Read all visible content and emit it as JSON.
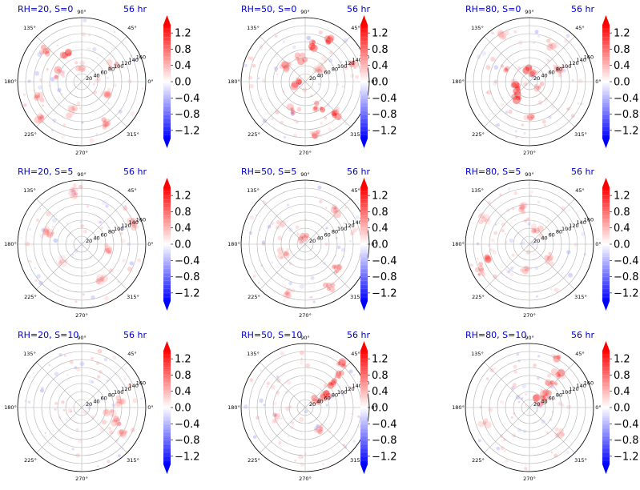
{
  "chart_data": [
    {
      "type": "heatmap",
      "projection": "polar",
      "title": "RH=20, S=0",
      "time_label": "56 hr",
      "radial_ticks": [
        20,
        40,
        60,
        80,
        100,
        120,
        140,
        160
      ],
      "rlim": [
        0,
        160
      ],
      "angular_ticks": [
        "0°",
        "45°",
        "90°",
        "135°",
        "180°",
        "225°",
        "270°",
        "315°"
      ],
      "colorbar": {
        "ticks": [
          "1.2",
          "0.8",
          "0.4",
          "0.0",
          "−0.4",
          "−0.8",
          "−1.2"
        ],
        "range": [
          -1.4,
          1.4
        ],
        "colormap": "bwr",
        "extend": "both"
      },
      "hotspots": [
        [
          120,
          75,
          0.7
        ],
        [
          140,
          120,
          0.6
        ],
        [
          160,
          60,
          0.5
        ],
        [
          200,
          110,
          0.5
        ],
        [
          250,
          80,
          0.4
        ],
        [
          300,
          120,
          0.5
        ],
        [
          30,
          90,
          0.4
        ],
        [
          330,
          70,
          0.3
        ],
        [
          100,
          40,
          0.4
        ],
        [
          220,
          140,
          0.4
        ]
      ]
    },
    {
      "type": "heatmap",
      "projection": "polar",
      "title": "RH=50, S=0",
      "time_label": "56 hr",
      "radial_ticks": [
        20,
        40,
        60,
        80,
        100,
        120,
        140,
        160
      ],
      "rlim": [
        0,
        160
      ],
      "angular_ticks": [
        "0°",
        "45°",
        "90°",
        "135°",
        "180°",
        "225°",
        "270°",
        "315°"
      ],
      "colorbar": {
        "ticks": [
          "1.2",
          "0.8",
          "0.4",
          "0.0",
          "−0.4",
          "−0.8",
          "−1.2"
        ],
        "range": [
          -1.4,
          1.4
        ],
        "colormap": "bwr",
        "extend": "both"
      },
      "hotspots": [
        [
          80,
          90,
          0.8
        ],
        [
          60,
          120,
          0.7
        ],
        [
          300,
          70,
          0.8
        ],
        [
          315,
          110,
          0.9
        ],
        [
          190,
          20,
          0.8
        ],
        [
          140,
          60,
          0.6
        ],
        [
          240,
          80,
          0.5
        ],
        [
          20,
          130,
          0.5
        ],
        [
          100,
          60,
          0.6
        ],
        [
          280,
          130,
          0.5
        ],
        [
          40,
          50,
          0.5
        ]
      ]
    },
    {
      "type": "heatmap",
      "projection": "polar",
      "title": "RH=80, S=0",
      "time_label": "56 hr",
      "radial_ticks": [
        20,
        40,
        60,
        80,
        100,
        120,
        140,
        160
      ],
      "rlim": [
        0,
        160
      ],
      "angular_ticks": [
        "0°",
        "45°",
        "90°",
        "135°",
        "180°",
        "225°",
        "270°",
        "315°"
      ],
      "colorbar": {
        "ticks": [
          "1.2",
          "0.8",
          "0.4",
          "0.0",
          "−0.4",
          "−0.8",
          "−1.2"
        ],
        "range": [
          -1.4,
          1.4
        ],
        "colormap": "bwr",
        "extend": "both"
      },
      "hotspots": [
        [
          90,
          25,
          0.9
        ],
        [
          200,
          40,
          0.9
        ],
        [
          230,
          50,
          0.8
        ],
        [
          330,
          30,
          0.6
        ],
        [
          150,
          70,
          0.5
        ],
        [
          20,
          80,
          0.4
        ],
        [
          270,
          90,
          0.4
        ],
        [
          60,
          110,
          0.4
        ],
        [
          120,
          130,
          0.3
        ]
      ]
    },
    {
      "type": "heatmap",
      "projection": "polar",
      "title": "RH=20, S=5",
      "time_label": "56 hr",
      "radial_ticks": [
        20,
        40,
        60,
        80,
        100,
        120,
        140,
        160
      ],
      "rlim": [
        0,
        160
      ],
      "angular_ticks": [
        "0°",
        "45°",
        "90°",
        "135°",
        "180°",
        "225°",
        "270°",
        "315°"
      ],
      "colorbar": {
        "ticks": [
          "1.2",
          "0.8",
          "0.4",
          "0.0",
          "−0.4",
          "−0.8",
          "−1.2"
        ],
        "range": [
          -1.4,
          1.4
        ],
        "colormap": "bwr",
        "extend": "both"
      },
      "hotspots": [
        [
          160,
          90,
          0.4
        ],
        [
          20,
          140,
          0.4
        ],
        [
          300,
          100,
          0.3
        ],
        [
          100,
          130,
          0.3
        ],
        [
          220,
          60,
          0.3
        ],
        [
          350,
          60,
          0.3
        ]
      ]
    },
    {
      "type": "heatmap",
      "projection": "polar",
      "title": "RH=50, S=5",
      "time_label": "56 hr",
      "radial_ticks": [
        20,
        40,
        60,
        80,
        100,
        120,
        140,
        160
      ],
      "rlim": [
        0,
        160
      ],
      "angular_ticks": [
        "0°",
        "45°",
        "90°",
        "135°",
        "180°",
        "225°",
        "270°",
        "315°"
      ],
      "colorbar": {
        "ticks": [
          "1.2",
          "0.8",
          "0.4",
          "0.0",
          "−0.4",
          "−0.8",
          "−1.2"
        ],
        "range": [
          -1.4,
          1.4
        ],
        "colormap": "bwr",
        "extend": "both"
      },
      "hotspots": [
        [
          100,
          20,
          0.6
        ],
        [
          300,
          120,
          0.6
        ],
        [
          320,
          100,
          0.5
        ],
        [
          50,
          110,
          0.4
        ],
        [
          200,
          60,
          0.4
        ],
        [
          250,
          130,
          0.4
        ],
        [
          140,
          80,
          0.3
        ]
      ]
    },
    {
      "type": "heatmap",
      "projection": "polar",
      "title": "RH=80, S=5",
      "time_label": "56 hr",
      "radial_ticks": [
        20,
        40,
        60,
        80,
        100,
        120,
        140,
        160
      ],
      "rlim": [
        0,
        160
      ],
      "angular_ticks": [
        "0°",
        "45°",
        "90°",
        "135°",
        "180°",
        "225°",
        "270°",
        "315°"
      ],
      "colorbar": {
        "ticks": [
          "1.2",
          "0.8",
          "0.4",
          "0.0",
          "−0.4",
          "−0.8",
          "−1.2"
        ],
        "range": [
          -1.4,
          1.4
        ],
        "colormap": "bwr",
        "extend": "both"
      },
      "hotspots": [
        [
          200,
          120,
          0.6
        ],
        [
          210,
          140,
          0.5
        ],
        [
          100,
          90,
          0.4
        ],
        [
          320,
          60,
          0.5
        ],
        [
          60,
          40,
          0.4
        ],
        [
          150,
          130,
          0.3
        ],
        [
          260,
          70,
          0.3
        ]
      ]
    },
    {
      "type": "heatmap",
      "projection": "polar",
      "title": "RH=20, S=10",
      "time_label": "56 hr",
      "radial_ticks": [
        20,
        40,
        60,
        80,
        100,
        120,
        140,
        160
      ],
      "rlim": [
        0,
        160
      ],
      "angular_ticks": [
        "0°",
        "45°",
        "90°",
        "135°",
        "180°",
        "225°",
        "270°",
        "315°"
      ],
      "colorbar": {
        "ticks": [
          "1.2",
          "0.8",
          "0.4",
          "0.0",
          "−0.4",
          "−0.8",
          "−1.2"
        ],
        "range": [
          -1.4,
          1.4
        ],
        "colormap": "bwr",
        "extend": "both"
      },
      "hotspots": [
        [
          340,
          90,
          0.5
        ],
        [
          10,
          100,
          0.4
        ],
        [
          330,
          120,
          0.4
        ],
        [
          350,
          70,
          0.3
        ]
      ]
    },
    {
      "type": "heatmap",
      "projection": "polar",
      "title": "RH=50, S=10",
      "time_label": "56 hr",
      "radial_ticks": [
        20,
        40,
        60,
        80,
        100,
        120,
        140,
        160
      ],
      "rlim": [
        0,
        160
      ],
      "angular_ticks": [
        "0°",
        "45°",
        "90°",
        "135°",
        "180°",
        "225°",
        "270°",
        "315°"
      ],
      "colorbar": {
        "ticks": [
          "1.2",
          "0.8",
          "0.4",
          "0.0",
          "−0.4",
          "−0.8",
          "−1.2"
        ],
        "range": [
          -1.4,
          1.4
        ],
        "colormap": "bwr",
        "extend": "both"
      },
      "hotspots": [
        [
          35,
          60,
          0.9
        ],
        [
          40,
          90,
          0.8
        ],
        [
          45,
          120,
          0.7
        ],
        [
          30,
          30,
          0.7
        ],
        [
          50,
          140,
          0.6
        ],
        [
          300,
          60,
          0.4
        ],
        [
          200,
          80,
          0.3
        ]
      ]
    },
    {
      "type": "heatmap",
      "projection": "polar",
      "title": "RH=80, S=10",
      "time_label": "56 hr",
      "radial_ticks": [
        20,
        40,
        60,
        80,
        100,
        120,
        140,
        160
      ],
      "rlim": [
        0,
        160
      ],
      "angular_ticks": [
        "0°",
        "45°",
        "90°",
        "135°",
        "180°",
        "225°",
        "270°",
        "315°"
      ],
      "colorbar": {
        "ticks": [
          "1.2",
          "0.8",
          "0.4",
          "0.0",
          "−0.4",
          "−0.8",
          "−1.2"
        ],
        "range": [
          -1.4,
          1.4
        ],
        "colormap": "bwr",
        "extend": "both"
      },
      "hotspots": [
        [
          30,
          30,
          0.9
        ],
        [
          40,
          50,
          0.8
        ],
        [
          45,
          80,
          0.7
        ],
        [
          50,
          110,
          0.6
        ],
        [
          60,
          140,
          0.5
        ],
        [
          200,
          120,
          0.3
        ],
        [
          320,
          100,
          0.3
        ]
      ]
    }
  ],
  "colors": {
    "title": "#0000cc",
    "positive": "#ff0000",
    "negative": "#0000ff",
    "grid": "#b0b0b0"
  }
}
